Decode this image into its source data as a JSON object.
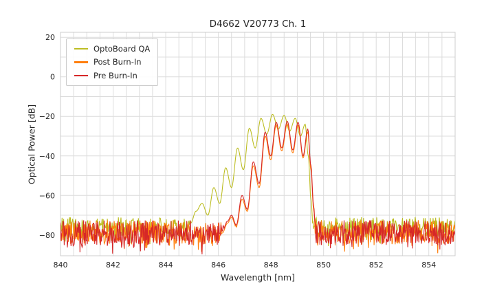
{
  "chart_data": {
    "type": "line",
    "title": "D4662 V20773 Ch. 1",
    "xlabel": "Wavelength [nm]",
    "ylabel": "Optical Power [dB]",
    "xlim": [
      840,
      855
    ],
    "ylim": [
      -90.5,
      22.5
    ],
    "x_ticks": [
      840,
      842,
      844,
      846,
      848,
      850,
      852,
      854
    ],
    "y_ticks": [
      20,
      0,
      -20,
      -40,
      -60,
      -80
    ],
    "grid": true,
    "grid_x_step": 0.5,
    "grid_y_step": 10,
    "legend_position": "upper-left",
    "series": [
      {
        "name": "OptoBoard QA",
        "color": "#bcbd22",
        "noise_floor_db": -76,
        "noise_amplitude_db": 5,
        "seed": 3,
        "envelope_points": [
          [
            844.7,
            -82
          ],
          [
            844.95,
            -74
          ],
          [
            845.15,
            -68
          ],
          [
            845.38,
            -64
          ],
          [
            845.6,
            -70
          ],
          [
            845.83,
            -56
          ],
          [
            846.05,
            -64
          ],
          [
            846.28,
            -46
          ],
          [
            846.5,
            -56
          ],
          [
            846.73,
            -36
          ],
          [
            846.95,
            -47
          ],
          [
            847.18,
            -26
          ],
          [
            847.4,
            -36
          ],
          [
            847.62,
            -21
          ],
          [
            847.84,
            -29
          ],
          [
            848.06,
            -19
          ],
          [
            848.28,
            -26.5
          ],
          [
            848.5,
            -19.5
          ],
          [
            848.71,
            -27.5
          ],
          [
            848.92,
            -21
          ],
          [
            849.12,
            -30
          ],
          [
            849.3,
            -24
          ],
          [
            849.42,
            -40
          ],
          [
            849.52,
            -62
          ],
          [
            849.62,
            -80
          ],
          [
            849.7,
            -90
          ]
        ]
      },
      {
        "name": "Post Burn-In",
        "color": "#ff7f0e",
        "noise_floor_db": -78.5,
        "noise_amplitude_db": 6,
        "seed": 17,
        "envelope_points": [
          [
            845.95,
            -86
          ],
          [
            846.15,
            -79
          ],
          [
            846.35,
            -74
          ],
          [
            846.5,
            -71
          ],
          [
            846.68,
            -76
          ],
          [
            846.9,
            -62
          ],
          [
            847.1,
            -68
          ],
          [
            847.33,
            -45
          ],
          [
            847.55,
            -56
          ],
          [
            847.78,
            -30
          ],
          [
            847.99,
            -42
          ],
          [
            848.2,
            -24.5
          ],
          [
            848.41,
            -37.5
          ],
          [
            848.62,
            -24
          ],
          [
            848.83,
            -38.5
          ],
          [
            849.03,
            -24.5
          ],
          [
            849.22,
            -41
          ],
          [
            849.4,
            -28
          ],
          [
            849.52,
            -47
          ],
          [
            849.62,
            -67
          ],
          [
            849.72,
            -86
          ],
          [
            849.78,
            -90
          ]
        ]
      },
      {
        "name": "Pre Burn-In",
        "color": "#d62728",
        "noise_floor_db": -79,
        "noise_amplitude_db": 6.5,
        "seed": 29,
        "envelope_points": [
          [
            845.95,
            -85
          ],
          [
            846.15,
            -78
          ],
          [
            846.35,
            -73
          ],
          [
            846.5,
            -70
          ],
          [
            846.68,
            -75
          ],
          [
            846.9,
            -60
          ],
          [
            847.1,
            -67
          ],
          [
            847.33,
            -43
          ],
          [
            847.55,
            -54
          ],
          [
            847.78,
            -28
          ],
          [
            847.99,
            -40
          ],
          [
            848.2,
            -23
          ],
          [
            848.41,
            -36
          ],
          [
            848.62,
            -22.5
          ],
          [
            848.83,
            -37
          ],
          [
            849.03,
            -23
          ],
          [
            849.22,
            -40
          ],
          [
            849.4,
            -26.5
          ],
          [
            849.52,
            -45
          ],
          [
            849.62,
            -65
          ],
          [
            849.72,
            -85
          ],
          [
            849.78,
            -90
          ]
        ]
      }
    ]
  }
}
